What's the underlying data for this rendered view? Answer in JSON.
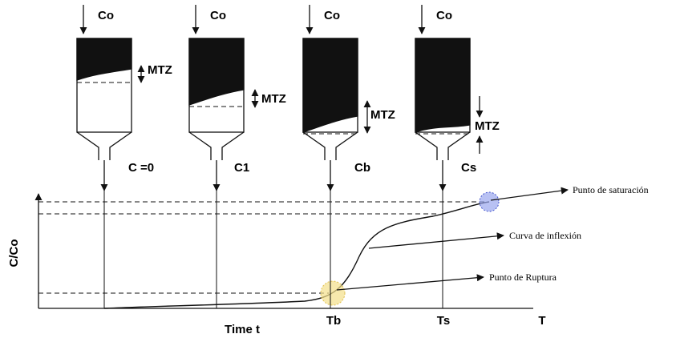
{
  "columns": [
    {
      "inlet": "Co",
      "mtz": "MTZ",
      "outlet": "C =0"
    },
    {
      "inlet": "Co",
      "mtz": "MTZ",
      "outlet": "C1"
    },
    {
      "inlet": "Co",
      "mtz": "MTZ",
      "outlet": "Cb"
    },
    {
      "inlet": "Co",
      "mtz": "MTZ",
      "outlet": "Cs"
    }
  ],
  "plot": {
    "y_label": "C/Co",
    "x_label": "Time t",
    "ticks": [
      "Tb",
      "Ts"
    ],
    "x_end": "T"
  },
  "annotations": {
    "saturation": "Punto de saturación",
    "inflection": "Curva de inflexión",
    "breakthrough": "Punto de Ruptura"
  }
}
